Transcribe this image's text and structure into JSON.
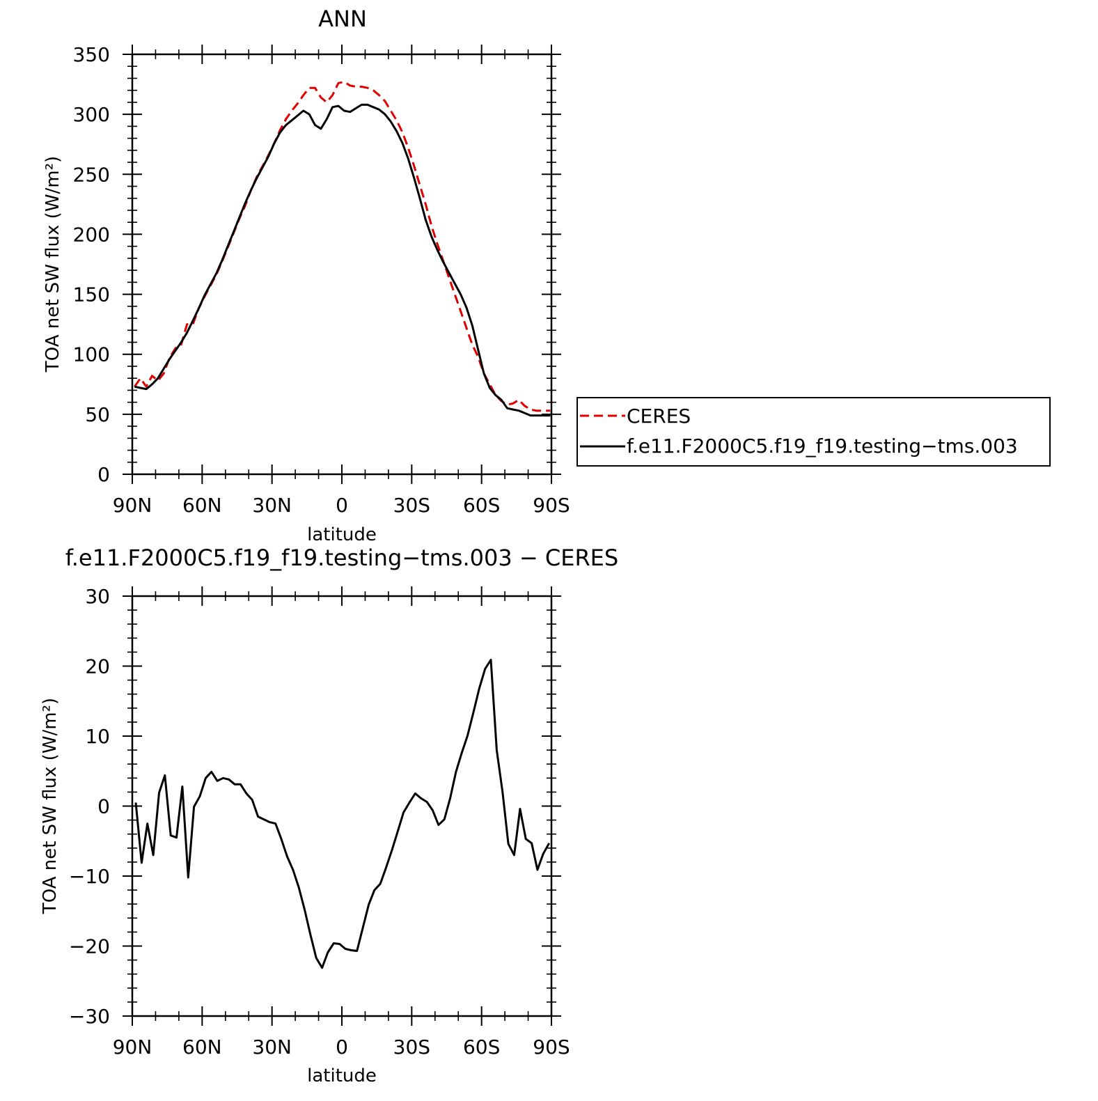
{
  "chart_data": [
    {
      "type": "line",
      "title": "ANN",
      "xlabel": "latitude",
      "ylabel": "TOA net SW flux (W/m²)",
      "xlim": [
        90,
        -90
      ],
      "ylim": [
        0,
        350
      ],
      "xticks": [
        {
          "value": 90,
          "label": "90N"
        },
        {
          "value": 60,
          "label": "60N"
        },
        {
          "value": 30,
          "label": "30N"
        },
        {
          "value": 0,
          "label": "0"
        },
        {
          "value": -30,
          "label": "30S"
        },
        {
          "value": -60,
          "label": "60S"
        },
        {
          "value": -90,
          "label": "90S"
        }
      ],
      "yticks": [
        0,
        50,
        100,
        150,
        200,
        250,
        300,
        350
      ],
      "grid": false,
      "legend_position": "right",
      "series": [
        {
          "name": "CERES",
          "color": "#e00000",
          "dash": "dashed",
          "x": [
            89,
            86.5,
            84,
            81.5,
            79,
            76.5,
            74,
            71.5,
            69,
            66.5,
            64,
            61.5,
            59,
            56.5,
            54,
            51.5,
            49,
            46.5,
            44,
            41.5,
            39,
            36.5,
            34,
            31.5,
            29,
            26.5,
            24,
            21.5,
            19,
            16.5,
            14,
            11.5,
            9,
            6.5,
            4,
            1.5,
            -1,
            -3.5,
            -6,
            -8.5,
            -11,
            -13.5,
            -16,
            -18.5,
            -21,
            -23.5,
            -26,
            -28.5,
            -31,
            -33.5,
            -36,
            -38.5,
            -41,
            -43.5,
            -46,
            -48.5,
            -51,
            -53.5,
            -56,
            -58.5,
            -61,
            -63.5,
            -66,
            -68.5,
            -71,
            -73.5,
            -76,
            -78.5,
            -81,
            -83.5,
            -86,
            -88.5,
            -89.5
          ],
          "values": [
            73,
            80,
            73,
            82,
            78,
            84,
            97,
            105,
            108,
            125,
            125,
            138,
            148,
            157,
            166,
            177,
            189,
            201,
            213,
            224,
            237,
            248,
            257,
            266,
            276,
            287,
            296,
            303,
            309,
            316,
            322,
            322,
            314,
            310,
            316,
            326,
            327,
            324,
            323,
            323,
            322,
            320,
            316,
            311,
            303,
            295,
            285,
            272,
            257,
            241,
            225,
            207,
            192,
            178,
            164,
            150,
            136,
            122,
            108,
            98,
            84,
            75,
            66,
            61,
            58,
            59,
            62,
            57,
            54,
            53,
            53,
            53,
            53
          ]
        },
        {
          "name": "f.e11.F2000C5.f19_f19.testing−tms.003",
          "color": "#000000",
          "dash": "solid",
          "x": [
            89,
            86.5,
            84,
            81.5,
            79,
            76.5,
            74,
            71.5,
            69,
            66.5,
            64,
            61.5,
            59,
            56.5,
            54,
            51.5,
            49,
            46.5,
            44,
            41.5,
            39,
            36.5,
            34,
            31.5,
            29,
            26.5,
            24,
            21.5,
            19,
            16.5,
            14,
            11.5,
            9,
            6.5,
            4,
            1.5,
            -1,
            -3.5,
            -6,
            -8.5,
            -11,
            -13.5,
            -16,
            -18.5,
            -21,
            -23.5,
            -26,
            -28.5,
            -31,
            -33.5,
            -36,
            -38.5,
            -41,
            -43.5,
            -46,
            -48.5,
            -51,
            -53.5,
            -56,
            -58.5,
            -61,
            -63.5,
            -66,
            -68.5,
            -71,
            -73.5,
            -76,
            -78.5,
            -81,
            -83.5,
            -86,
            -88.5,
            -89.5
          ],
          "values": [
            73,
            72,
            71,
            75,
            80,
            88,
            96,
            103,
            110,
            118,
            128,
            138,
            149,
            158,
            167,
            178,
            190,
            202,
            214,
            226,
            237,
            247,
            256,
            265,
            276,
            285,
            291,
            295,
            299,
            303,
            300,
            291,
            288,
            296,
            306,
            307,
            303,
            302,
            305,
            308,
            308,
            306,
            304,
            300,
            294,
            286,
            276,
            263,
            247,
            230,
            212,
            198,
            187,
            177,
            168,
            159,
            150,
            139,
            124,
            104,
            84,
            72,
            66,
            62,
            55,
            54,
            53,
            51,
            49,
            49,
            49,
            49,
            49
          ]
        }
      ],
      "legend": [
        {
          "label": "CERES",
          "color": "#e00000",
          "dash": "dashed"
        },
        {
          "label": "f.e11.F2000C5.f19_f19.testing−tms.003",
          "color": "#000000",
          "dash": "solid"
        }
      ]
    },
    {
      "type": "line",
      "title": "f.e11.F2000C5.f19_f19.testing−tms.003 − CERES",
      "xlabel": "latitude",
      "ylabel": "TOA net SW flux (W/m²)",
      "xlim": [
        90,
        -90
      ],
      "ylim": [
        -30,
        30
      ],
      "xticks": [
        {
          "value": 90,
          "label": "90N"
        },
        {
          "value": 60,
          "label": "60N"
        },
        {
          "value": 30,
          "label": "30N"
        },
        {
          "value": 0,
          "label": "0"
        },
        {
          "value": -30,
          "label": "30S"
        },
        {
          "value": -60,
          "label": "60S"
        },
        {
          "value": -90,
          "label": "90S"
        }
      ],
      "yticks": [
        -30,
        -20,
        -10,
        0,
        10,
        20,
        30
      ],
      "ytick_labels": [
        "−30",
        "−20",
        "−10",
        "0",
        "10",
        "20",
        "30"
      ],
      "grid": false,
      "series": [
        {
          "color": "#000000",
          "dash": "solid",
          "x": [
            88.5,
            86,
            83.5,
            81,
            78.5,
            76,
            73.5,
            71,
            68.5,
            66,
            63.5,
            61,
            58.5,
            56,
            53.5,
            51,
            48.5,
            46,
            43.5,
            41,
            38.5,
            36,
            33.5,
            31,
            28.5,
            26,
            23.5,
            21,
            18.5,
            16,
            13.5,
            11,
            8.5,
            6,
            3.5,
            1,
            -1.5,
            -4,
            -6.5,
            -9,
            -11.5,
            -14,
            -16.5,
            -19,
            -21.5,
            -24,
            -26.5,
            -29,
            -31.5,
            -34,
            -36.5,
            -39,
            -41.5,
            -44,
            -46.5,
            -49,
            -51.5,
            -54,
            -56.5,
            -59,
            -61.5,
            -64,
            -66.5,
            -69,
            -71.5,
            -74,
            -76.5,
            -79,
            -81.5,
            -84,
            -86.5,
            -89
          ],
          "values": [
            0.5,
            -8.1,
            -2.5,
            -7,
            1.9,
            4.4,
            -4.2,
            -4.5,
            2.8,
            -10.2,
            -0.1,
            1.4,
            4,
            4.9,
            3.6,
            4,
            3.8,
            3.1,
            3.1,
            1.8,
            0.9,
            -1.5,
            -1.9,
            -2.3,
            -2.5,
            -4.7,
            -7.2,
            -9.1,
            -11.6,
            -14.8,
            -18.4,
            -21.7,
            -23.1,
            -20.9,
            -19.6,
            -19.7,
            -20.4,
            -20.6,
            -20.7,
            -17.4,
            -14.1,
            -12,
            -11.1,
            -8.8,
            -6.3,
            -3.6,
            -0.9,
            0.5,
            1.8,
            1.1,
            0.6,
            -0.6,
            -2.7,
            -1.9,
            1.1,
            4.9,
            7.6,
            10.1,
            13.4,
            16.8,
            19.6,
            20.9,
            8,
            2,
            -5.4,
            -7,
            -0.4,
            -4.7,
            -5.3,
            -9.1,
            -6.8,
            -5.3
          ]
        }
      ]
    }
  ]
}
